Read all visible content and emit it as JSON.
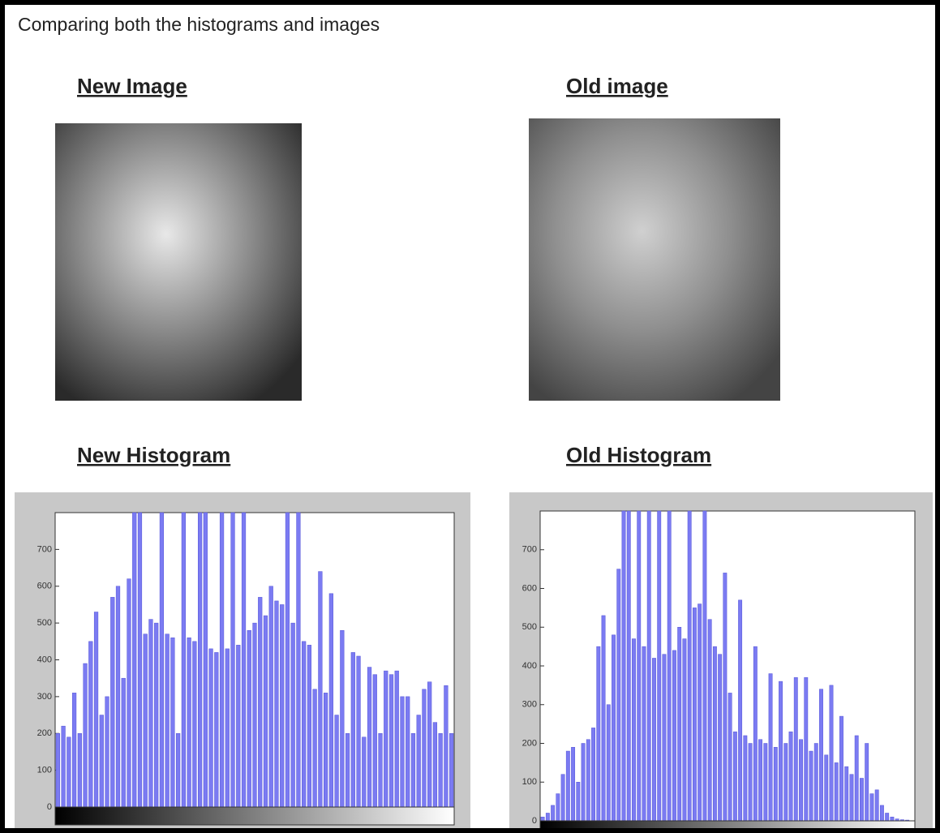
{
  "title": "Comparing both the histograms and images",
  "images": [
    {
      "label": "New Image"
    },
    {
      "label": "Old image"
    }
  ],
  "chart_data": [
    {
      "type": "bar",
      "title": "New Histogram",
      "color": "#7b7bf2",
      "values": [
        200,
        220,
        190,
        310,
        200,
        390,
        450,
        530,
        250,
        300,
        570,
        600,
        350,
        620,
        800,
        800,
        470,
        510,
        500,
        800,
        470,
        460,
        200,
        800,
        460,
        450,
        800,
        800,
        430,
        420,
        800,
        430,
        800,
        440,
        800,
        480,
        500,
        570,
        520,
        600,
        560,
        550,
        800,
        500,
        800,
        450,
        440,
        320,
        640,
        310,
        580,
        250,
        480,
        200,
        420,
        410,
        190,
        380,
        360,
        200,
        370,
        360,
        370,
        300,
        300,
        200,
        250,
        320,
        340,
        230,
        200,
        330,
        200
      ],
      "ylim": [
        0,
        800
      ],
      "yticks": [
        0,
        100,
        200,
        300,
        400,
        500,
        600,
        700
      ]
    },
    {
      "type": "bar",
      "title": "Old Histogram",
      "color": "#7b7bf2",
      "values": [
        10,
        20,
        40,
        70,
        120,
        180,
        190,
        100,
        200,
        210,
        240,
        450,
        530,
        300,
        480,
        650,
        800,
        800,
        470,
        800,
        450,
        800,
        420,
        800,
        430,
        800,
        440,
        500,
        470,
        800,
        550,
        560,
        800,
        520,
        450,
        430,
        640,
        330,
        230,
        570,
        220,
        200,
        450,
        210,
        200,
        380,
        190,
        360,
        200,
        230,
        370,
        210,
        370,
        180,
        200,
        340,
        170,
        350,
        150,
        270,
        140,
        120,
        220,
        110,
        200,
        70,
        80,
        40,
        20,
        10,
        5,
        3,
        2,
        0
      ],
      "ylim": [
        0,
        800
      ],
      "yticks": [
        0,
        100,
        200,
        300,
        400,
        500,
        600,
        700
      ]
    }
  ]
}
